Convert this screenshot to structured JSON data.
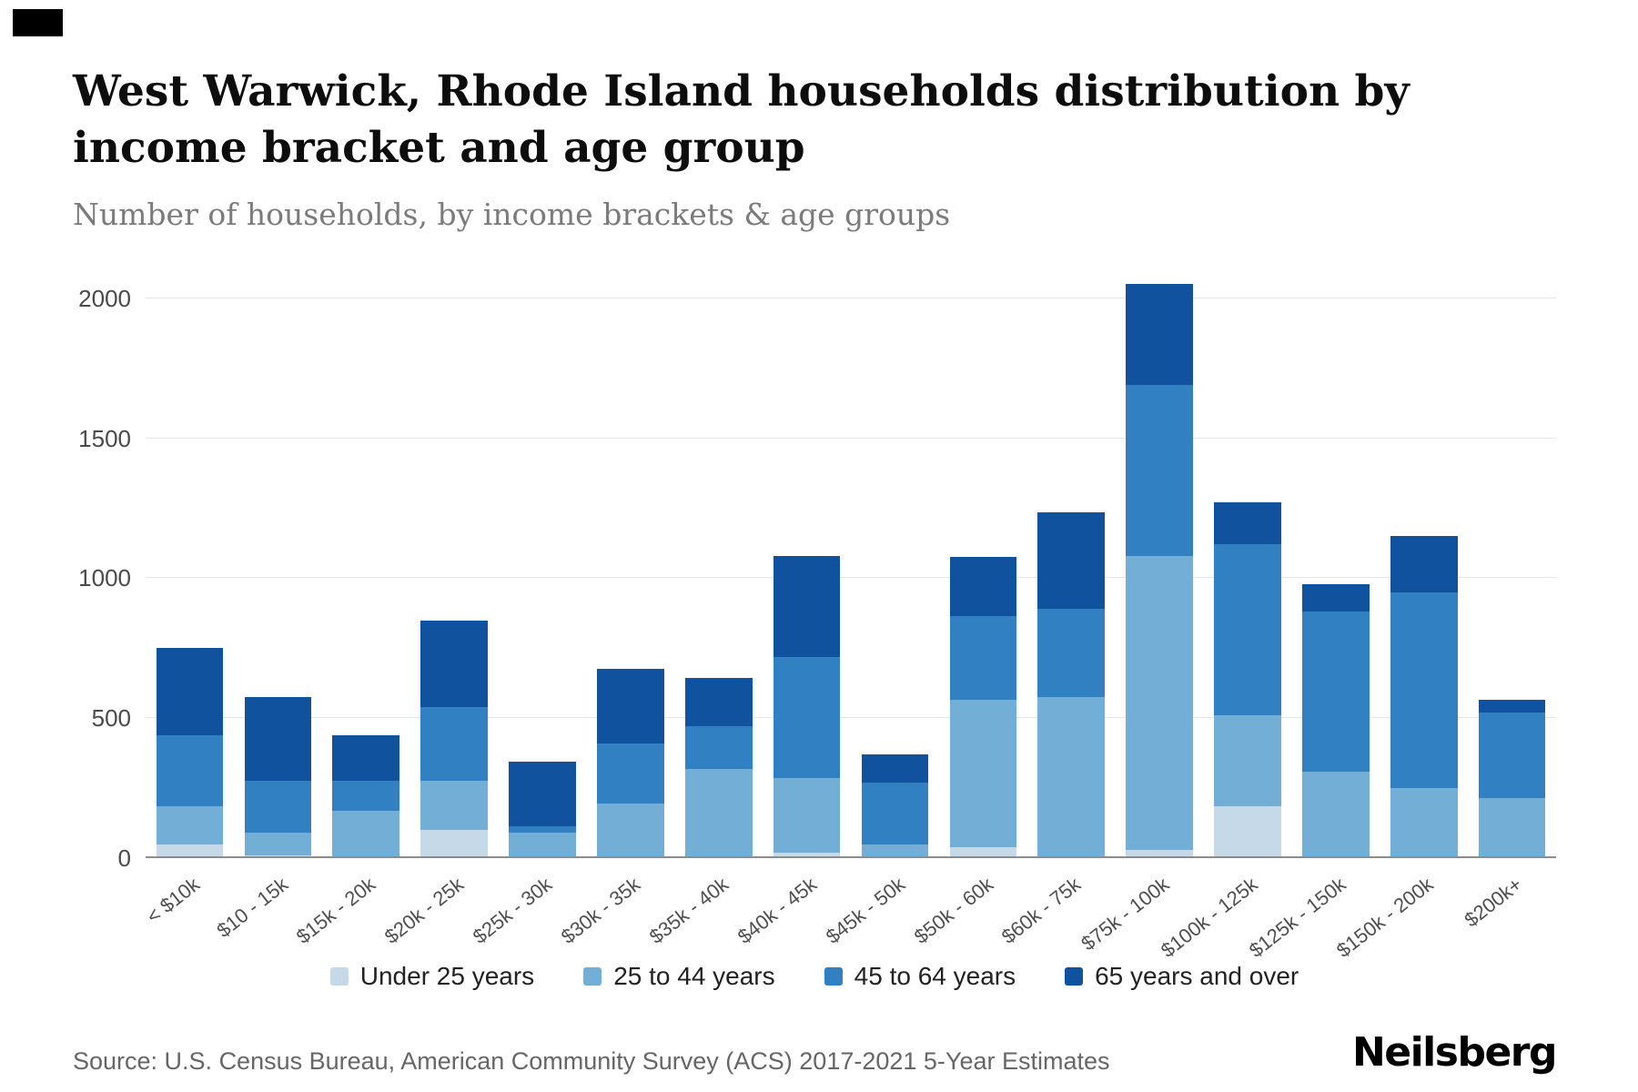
{
  "header": {
    "title": "West Warwick, Rhode Island households distribution by income bracket and age group",
    "subtitle": "Number of households, by income brackets & age groups"
  },
  "footer": {
    "source": "Source: U.S. Census Bureau, American Community Survey (ACS) 2017-2021 5-Year Estimates",
    "brand": "Neilsberg"
  },
  "chart_data": {
    "type": "bar",
    "stacked": true,
    "title": "West Warwick, Rhode Island households distribution by income bracket and age group",
    "subtitle": "Number of households, by income brackets & age groups",
    "xlabel": "",
    "ylabel": "",
    "ylim": [
      0,
      2080
    ],
    "yticks": [
      0,
      500,
      1000,
      1500,
      2000
    ],
    "grid": true,
    "legend_position": "bottom",
    "categories": [
      "< $10k",
      "$10 - 15k",
      "$15k - 20k",
      "$20k - 25k",
      "$25k - 30k",
      "$30k - 35k",
      "$35k - 40k",
      "$40k - 45k",
      "$45k - 50k",
      "$50k - 60k",
      "$60k - 75k",
      "$75k - 100k",
      "$100k - 125k",
      "$125k - 150k",
      "$150k - 200k",
      "$200k+"
    ],
    "series": [
      {
        "name": "Under 25 years",
        "color": "#c6d9e9",
        "values": [
          50,
          10,
          0,
          100,
          0,
          0,
          0,
          20,
          0,
          40,
          0,
          30,
          185,
          0,
          0,
          0
        ]
      },
      {
        "name": "25 to 44 years",
        "color": "#72aed6",
        "values": [
          135,
          80,
          170,
          175,
          90,
          195,
          320,
          265,
          50,
          525,
          575,
          1050,
          325,
          310,
          250,
          215
        ]
      },
      {
        "name": "45 to 64 years",
        "color": "#3181c2",
        "values": [
          255,
          185,
          105,
          265,
          25,
          215,
          150,
          435,
          220,
          300,
          315,
          610,
          610,
          570,
          700,
          305
        ]
      },
      {
        "name": "65 years and over",
        "color": "#11529f",
        "values": [
          310,
          300,
          165,
          310,
          230,
          265,
          175,
          360,
          100,
          210,
          345,
          360,
          150,
          100,
          200,
          45
        ]
      }
    ]
  }
}
